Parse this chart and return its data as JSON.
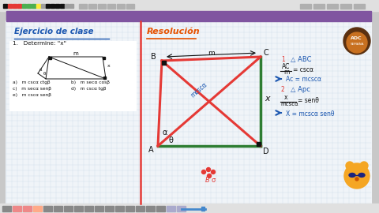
{
  "bg_outer": "#c8c8c8",
  "bg_toolbar": "#e0e0e0",
  "purple_bar": "#8055a0",
  "board_bg": "#f0f4f8",
  "board_border": "#1a237e",
  "grid_color": "#c8d8e8",
  "white": "#ffffff",
  "red": "#e53935",
  "green": "#2e7d32",
  "blue_text": "#1a56b0",
  "orange_text": "#e65100",
  "black": "#111111",
  "title_left": "Ejercicio de clase",
  "title_right": "Resolución",
  "exercise_label": "1.   Determine: \"x\"",
  "opt_a": "a)   m cscα ctgβ",
  "opt_b": "b)   m secα cosβ",
  "opt_c": "c)   m secα senβ",
  "opt_d": "d)   m cscα tgβ",
  "opt_e": "e)   m cscα senβ",
  "label_m": "m",
  "label_A": "A",
  "label_B": "B",
  "label_C": "C",
  "label_D": "D",
  "label_x": "x",
  "label_alpha": "α",
  "label_theta": "θ",
  "label_mcscalpha": "mcscα",
  "step1_circle": "1",
  "step1_tri": "△ ABC",
  "step1_frac_num": "AC",
  "step1_frac_den": "m",
  "step1_eq": "= cscα",
  "step1_res": "Ac = mcscα",
  "step2_circle": "2",
  "step2_tri": "△ Apc",
  "step2_frac_num": "x",
  "step2_frac_den": "mcscα",
  "step2_eq": "= senθ",
  "step2_res": "X = mcscα senθ"
}
